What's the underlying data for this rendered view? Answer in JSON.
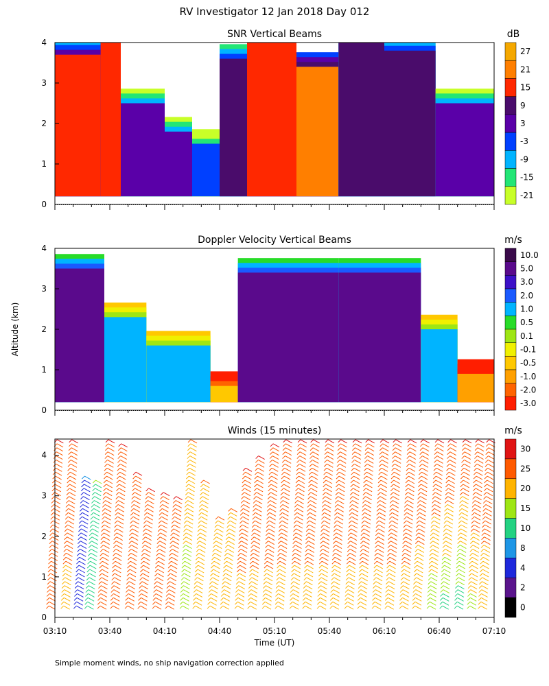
{
  "page": {
    "title": "RV Investigator  12 Jan 2018 Day 012",
    "ylabel": "Altitude (km)",
    "xlabel": "Time (UT)",
    "footnote": "Simple moment winds, no ship navigation correction applied"
  },
  "chart_data": [
    {
      "type": "heatmap",
      "title": "SNR Vertical Beams",
      "unit": "dB",
      "ylim": [
        0,
        4
      ],
      "yticks": [
        "0",
        "1",
        "2",
        "3",
        "4"
      ],
      "colorbar_labels": [
        "27",
        "21",
        "15",
        "9",
        "3",
        "-3",
        "-9",
        "-15",
        "-21"
      ],
      "colorbar_colors": [
        "#f5a800",
        "#ff7f00",
        "#ff2800",
        "#4a0c6b",
        "#5a00a8",
        "#0040ff",
        "#00b4ff",
        "#23e676",
        "#c8ff28"
      ],
      "segments": [
        {
          "from": "03:10",
          "to": "03:35",
          "level": "15",
          "top_km": 3.7
        },
        {
          "from": "03:35",
          "to": "03:46",
          "level": "15",
          "top_km": 4.0
        },
        {
          "from": "03:46",
          "to": "04:10",
          "level": "3",
          "top_km": 2.5
        },
        {
          "from": "04:10",
          "to": "04:25",
          "level": "3",
          "top_km": 1.8
        },
        {
          "from": "04:25",
          "to": "04:40",
          "level": "-3",
          "top_km": 1.5
        },
        {
          "from": "04:40",
          "to": "04:55",
          "level": "9",
          "top_km": 3.6
        },
        {
          "from": "04:55",
          "to": "05:22",
          "level": "15",
          "top_km": 4.0
        },
        {
          "from": "05:22",
          "to": "05:45",
          "level": "21",
          "top_km": 3.4
        },
        {
          "from": "05:45",
          "to": "06:10",
          "level": "9",
          "top_km": 4.0
        },
        {
          "from": "06:10",
          "to": "06:38",
          "level": "9",
          "top_km": 3.8
        },
        {
          "from": "06:38",
          "to": "07:10",
          "level": "3",
          "top_km": 2.5
        }
      ]
    },
    {
      "type": "heatmap",
      "title": "Doppler Velocity Vertical Beams",
      "unit": "m/s",
      "ylim": [
        0,
        4
      ],
      "yticks": [
        "0",
        "1",
        "2",
        "3",
        "4"
      ],
      "colorbar_labels": [
        "10.0",
        "5.0",
        "3.0",
        "2.0",
        "1.0",
        "0.5",
        "0.1",
        "-0.1",
        "-0.5",
        "-1.0",
        "-2.0",
        "-3.0"
      ],
      "colorbar_colors": [
        "#3a0a4a",
        "#5a0a8c",
        "#3c10c8",
        "#1a5aff",
        "#00b4ff",
        "#28dc28",
        "#9ee614",
        "#f0f000",
        "#ffc800",
        "#ffa000",
        "#ff6400",
        "#ff1e00"
      ],
      "segments": [
        {
          "from": "03:10",
          "to": "03:37",
          "level": "5.0",
          "top_km": 3.5
        },
        {
          "from": "03:37",
          "to": "04:00",
          "level": "1.0",
          "top_km": 2.3
        },
        {
          "from": "04:00",
          "to": "04:35",
          "level": "1.0",
          "top_km": 1.6
        },
        {
          "from": "04:35",
          "to": "04:50",
          "level": "-0.5",
          "top_km": 0.6
        },
        {
          "from": "04:50",
          "to": "05:45",
          "level": "5.0",
          "top_km": 3.4
        },
        {
          "from": "05:45",
          "to": "06:30",
          "level": "5.0",
          "top_km": 3.4
        },
        {
          "from": "06:30",
          "to": "06:50",
          "level": "1.0",
          "top_km": 2.0
        },
        {
          "from": "06:50",
          "to": "07:10",
          "level": "-1.0",
          "top_km": 0.9
        }
      ]
    },
    {
      "type": "scatter",
      "title": "Winds (15 minutes)",
      "unit": "m/s",
      "ylim": [
        0,
        4.4
      ],
      "yticks": [
        "0",
        "1",
        "2",
        "3",
        "4"
      ],
      "xticks": [
        "03:10",
        "03:40",
        "04:10",
        "04:40",
        "05:10",
        "05:40",
        "06:10",
        "06:40",
        "07:10"
      ],
      "colorbar_labels": [
        "30",
        "25",
        "20",
        "15",
        "10",
        "8",
        "4",
        "2",
        "0"
      ],
      "colorbar_colors": [
        "#e01414",
        "#ff5a00",
        "#ffb400",
        "#9ee614",
        "#23d282",
        "#1e96e6",
        "#1e28dc",
        "#5a148c",
        "#000000"
      ],
      "profiles": [
        {
          "time": "03:12",
          "top_km": 4.3,
          "speed_low": 25,
          "speed_high": 30
        },
        {
          "time": "03:20",
          "top_km": 4.3,
          "speed_low": 22,
          "speed_high": 30
        },
        {
          "time": "03:27",
          "top_km": 3.4,
          "speed_low": 4,
          "speed_high": 8
        },
        {
          "time": "03:33",
          "top_km": 3.3,
          "speed_low": 10,
          "speed_high": 15
        },
        {
          "time": "03:40",
          "top_km": 4.3,
          "speed_low": 25,
          "speed_high": 30
        },
        {
          "time": "03:47",
          "top_km": 4.2,
          "speed_low": 25,
          "speed_high": 30
        },
        {
          "time": "03:55",
          "top_km": 3.5,
          "speed_low": 25,
          "speed_high": 30
        },
        {
          "time": "04:02",
          "top_km": 3.1,
          "speed_low": 25,
          "speed_high": 30
        },
        {
          "time": "04:10",
          "top_km": 3.0,
          "speed_low": 25,
          "speed_high": 30
        },
        {
          "time": "04:17",
          "top_km": 2.9,
          "speed_low": 25,
          "speed_high": 30
        },
        {
          "time": "04:25",
          "top_km": 4.3,
          "speed_low": 15,
          "speed_high": 25
        },
        {
          "time": "04:32",
          "top_km": 3.3,
          "speed_low": 20,
          "speed_high": 25
        },
        {
          "time": "04:40",
          "top_km": 2.4,
          "speed_low": 20,
          "speed_high": 25
        },
        {
          "time": "04:47",
          "top_km": 2.6,
          "speed_low": 20,
          "speed_high": 25
        },
        {
          "time": "04:55",
          "top_km": 3.6,
          "speed_low": 22,
          "speed_high": 30
        },
        {
          "time": "05:02",
          "top_km": 3.9,
          "speed_low": 22,
          "speed_high": 30
        },
        {
          "time": "05:10",
          "top_km": 4.2,
          "speed_low": 22,
          "speed_high": 30
        },
        {
          "time": "05:17",
          "top_km": 4.3,
          "speed_low": 22,
          "speed_high": 30
        },
        {
          "time": "05:25",
          "top_km": 4.3,
          "speed_low": 22,
          "speed_high": 30
        },
        {
          "time": "05:32",
          "top_km": 4.3,
          "speed_low": 22,
          "speed_high": 30
        },
        {
          "time": "05:40",
          "top_km": 4.3,
          "speed_low": 22,
          "speed_high": 30
        },
        {
          "time": "05:47",
          "top_km": 4.3,
          "speed_low": 22,
          "speed_high": 30
        },
        {
          "time": "05:55",
          "top_km": 4.3,
          "speed_low": 22,
          "speed_high": 30
        },
        {
          "time": "06:02",
          "top_km": 4.3,
          "speed_low": 22,
          "speed_high": 30
        },
        {
          "time": "06:10",
          "top_km": 4.3,
          "speed_low": 22,
          "speed_high": 30
        },
        {
          "time": "06:17",
          "top_km": 4.3,
          "speed_low": 22,
          "speed_high": 30
        },
        {
          "time": "06:25",
          "top_km": 4.3,
          "speed_low": 22,
          "speed_high": 30
        },
        {
          "time": "06:32",
          "top_km": 4.3,
          "speed_low": 20,
          "speed_high": 30
        },
        {
          "time": "06:40",
          "top_km": 4.3,
          "speed_low": 15,
          "speed_high": 30
        },
        {
          "time": "06:47",
          "top_km": 4.3,
          "speed_low": 12,
          "speed_high": 30
        },
        {
          "time": "06:55",
          "top_km": 4.3,
          "speed_low": 10,
          "speed_high": 30
        },
        {
          "time": "07:02",
          "top_km": 4.3,
          "speed_low": 18,
          "speed_high": 30
        },
        {
          "time": "07:08",
          "top_km": 4.3,
          "speed_low": 20,
          "speed_high": 30
        }
      ]
    }
  ]
}
